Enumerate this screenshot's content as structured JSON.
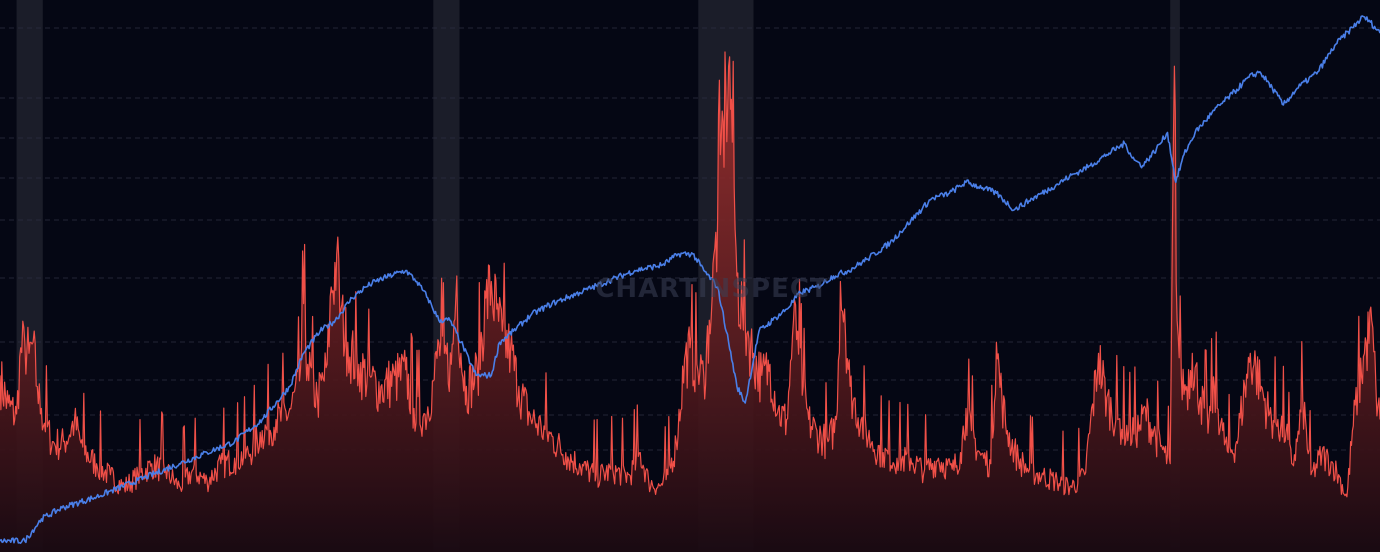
{
  "watermark": "CHARTINSPECT",
  "colors": {
    "background": "#050714",
    "grid": "#2a2d3e",
    "band": "#ffffff",
    "price_line": "#4a7fe8",
    "spike_line": "#f05048",
    "spike_fill_top": "#b8332f",
    "spike_fill_bottom": "#1a0a12"
  },
  "chart_data": {
    "type": "line",
    "title": "",
    "xlabel": "",
    "ylabel": "",
    "xlim": [
      0,
      1000
    ],
    "ylim_left": [
      0,
      100
    ],
    "ylim_right": [
      0,
      100
    ],
    "grid": true,
    "shaded_bands": [
      [
        12,
        31
      ],
      [
        314,
        333
      ],
      [
        506,
        546
      ],
      [
        848,
        855
      ]
    ],
    "series": [
      {
        "type": "line",
        "axis": "left",
        "points": [
          [
            0,
            2
          ],
          [
            18,
            2
          ],
          [
            30,
            6
          ],
          [
            45,
            8
          ],
          [
            70,
            10
          ],
          [
            100,
            13
          ],
          [
            130,
            16
          ],
          [
            150,
            18
          ],
          [
            170,
            20
          ],
          [
            190,
            24
          ],
          [
            210,
            30
          ],
          [
            220,
            36
          ],
          [
            232,
            40
          ],
          [
            243,
            42
          ],
          [
            255,
            46
          ],
          [
            265,
            48
          ],
          [
            272,
            49
          ],
          [
            282,
            50
          ],
          [
            294,
            51
          ],
          [
            302,
            49
          ],
          [
            310,
            46
          ],
          [
            318,
            42
          ],
          [
            326,
            42
          ],
          [
            334,
            38
          ],
          [
            345,
            32
          ],
          [
            356,
            32
          ],
          [
            362,
            38
          ],
          [
            372,
            40
          ],
          [
            385,
            43
          ],
          [
            400,
            45
          ],
          [
            420,
            47
          ],
          [
            440,
            49
          ],
          [
            460,
            51
          ],
          [
            480,
            52
          ],
          [
            492,
            54
          ],
          [
            502,
            54
          ],
          [
            510,
            51
          ],
          [
            520,
            48
          ],
          [
            528,
            38
          ],
          [
            534,
            30
          ],
          [
            540,
            27
          ],
          [
            550,
            40
          ],
          [
            560,
            42
          ],
          [
            570,
            44
          ],
          [
            580,
            47
          ],
          [
            592,
            48
          ],
          [
            604,
            50
          ],
          [
            615,
            51
          ],
          [
            628,
            53
          ],
          [
            645,
            56
          ],
          [
            660,
            60
          ],
          [
            675,
            64
          ],
          [
            688,
            65
          ],
          [
            700,
            67
          ],
          [
            712,
            66
          ],
          [
            722,
            65
          ],
          [
            735,
            62
          ],
          [
            748,
            64
          ],
          [
            762,
            66
          ],
          [
            775,
            68
          ],
          [
            790,
            70
          ],
          [
            802,
            72
          ],
          [
            815,
            74
          ],
          [
            822,
            71
          ],
          [
            828,
            70
          ],
          [
            838,
            73
          ],
          [
            846,
            76
          ],
          [
            852,
            67
          ],
          [
            858,
            72
          ],
          [
            866,
            76
          ],
          [
            880,
            80
          ],
          [
            893,
            83
          ],
          [
            905,
            86
          ],
          [
            913,
            87
          ],
          [
            922,
            84
          ],
          [
            930,
            81
          ],
          [
            940,
            84
          ],
          [
            955,
            87
          ],
          [
            968,
            92
          ],
          [
            980,
            95
          ],
          [
            988,
            97
          ],
          [
            993,
            96
          ],
          [
            1000,
            94
          ]
        ]
      },
      {
        "type": "area",
        "axis": "right",
        "points": [
          [
            0,
            32
          ],
          [
            6,
            27
          ],
          [
            12,
            25
          ],
          [
            15,
            37
          ],
          [
            18,
            38
          ],
          [
            21,
            36
          ],
          [
            24,
            38
          ],
          [
            27,
            30
          ],
          [
            30,
            26
          ],
          [
            38,
            20
          ],
          [
            46,
            20
          ],
          [
            54,
            24
          ],
          [
            60,
            19
          ],
          [
            70,
            16
          ],
          [
            80,
            14
          ],
          [
            90,
            12
          ],
          [
            100,
            14
          ],
          [
            110,
            16
          ],
          [
            120,
            15
          ],
          [
            130,
            12
          ],
          [
            140,
            15
          ],
          [
            150,
            13
          ],
          [
            160,
            16
          ],
          [
            170,
            17
          ],
          [
            180,
            18
          ],
          [
            190,
            22
          ],
          [
            200,
            24
          ],
          [
            210,
            26
          ],
          [
            217,
            31
          ],
          [
            220,
            45
          ],
          [
            223,
            34
          ],
          [
            230,
            28
          ],
          [
            237,
            34
          ],
          [
            240,
            48
          ],
          [
            244,
            54
          ],
          [
            247,
            44
          ],
          [
            252,
            38
          ],
          [
            260,
            34
          ],
          [
            268,
            32
          ],
          [
            276,
            30
          ],
          [
            286,
            32
          ],
          [
            294,
            33
          ],
          [
            300,
            26
          ],
          [
            308,
            25
          ],
          [
            314,
            31
          ],
          [
            318,
            38
          ],
          [
            322,
            36
          ],
          [
            327,
            34
          ],
          [
            331,
            50
          ],
          [
            334,
            36
          ],
          [
            338,
            30
          ],
          [
            346,
            33
          ],
          [
            352,
            46
          ],
          [
            356,
            49
          ],
          [
            360,
            44
          ],
          [
            364,
            40
          ],
          [
            370,
            37
          ],
          [
            376,
            30
          ],
          [
            384,
            25
          ],
          [
            392,
            23
          ],
          [
            400,
            21
          ],
          [
            410,
            18
          ],
          [
            420,
            16
          ],
          [
            432,
            14
          ],
          [
            444,
            15
          ],
          [
            456,
            14
          ],
          [
            464,
            18
          ],
          [
            470,
            13
          ],
          [
            478,
            12
          ],
          [
            484,
            14
          ],
          [
            490,
            20
          ],
          [
            496,
            35
          ],
          [
            500,
            37
          ],
          [
            505,
            34
          ],
          [
            510,
            32
          ],
          [
            514,
            42
          ],
          [
            516,
            46
          ],
          [
            518,
            55
          ],
          [
            520,
            60
          ],
          [
            522,
            72
          ],
          [
            524,
            78
          ],
          [
            526,
            84
          ],
          [
            528,
            88
          ],
          [
            530,
            82
          ],
          [
            532,
            66
          ],
          [
            534,
            50
          ],
          [
            538,
            44
          ],
          [
            542,
            40
          ],
          [
            546,
            36
          ],
          [
            552,
            32
          ],
          [
            558,
            34
          ],
          [
            564,
            26
          ],
          [
            570,
            24
          ],
          [
            575,
            42
          ],
          [
            578,
            40
          ],
          [
            582,
            30
          ],
          [
            586,
            24
          ],
          [
            592,
            22
          ],
          [
            600,
            20
          ],
          [
            606,
            24
          ],
          [
            609,
            49
          ],
          [
            612,
            44
          ],
          [
            616,
            30
          ],
          [
            624,
            24
          ],
          [
            632,
            20
          ],
          [
            640,
            18
          ],
          [
            650,
            17
          ],
          [
            660,
            17
          ],
          [
            670,
            15
          ],
          [
            680,
            17
          ],
          [
            690,
            15
          ],
          [
            696,
            18
          ],
          [
            700,
            26
          ],
          [
            704,
            22
          ],
          [
            710,
            18
          ],
          [
            718,
            16
          ],
          [
            722,
            38
          ],
          [
            726,
            28
          ],
          [
            730,
            22
          ],
          [
            738,
            17
          ],
          [
            746,
            15
          ],
          [
            756,
            14
          ],
          [
            766,
            13
          ],
          [
            776,
            12
          ],
          [
            786,
            14
          ],
          [
            796,
            36
          ],
          [
            802,
            28
          ],
          [
            810,
            24
          ],
          [
            818,
            22
          ],
          [
            826,
            23
          ],
          [
            830,
            26
          ],
          [
            836,
            22
          ],
          [
            844,
            18
          ],
          [
            848,
            16
          ],
          [
            851,
            88
          ],
          [
            853,
            42
          ],
          [
            856,
            32
          ],
          [
            860,
            30
          ],
          [
            864,
            36
          ],
          [
            870,
            28
          ],
          [
            876,
            24
          ],
          [
            880,
            30
          ],
          [
            886,
            22
          ],
          [
            890,
            18
          ],
          [
            896,
            20
          ],
          [
            902,
            30
          ],
          [
            906,
            36
          ],
          [
            910,
            34
          ],
          [
            914,
            30
          ],
          [
            920,
            25
          ],
          [
            926,
            24
          ],
          [
            932,
            22
          ],
          [
            936,
            16
          ],
          [
            940,
            20
          ],
          [
            944,
            28
          ],
          [
            950,
            14
          ],
          [
            958,
            18
          ],
          [
            966,
            16
          ],
          [
            970,
            14
          ],
          [
            976,
            10
          ],
          [
            980,
            22
          ],
          [
            984,
            30
          ],
          [
            990,
            38
          ],
          [
            994,
            42
          ],
          [
            997,
            30
          ],
          [
            1000,
            24
          ]
        ]
      }
    ]
  }
}
